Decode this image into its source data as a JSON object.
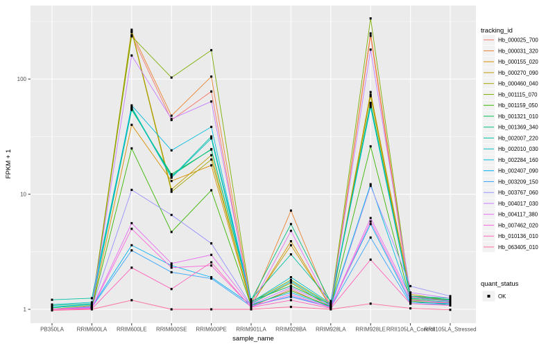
{
  "chart_data": {
    "type": "line",
    "title": "",
    "xlabel": "sample_name",
    "ylabel": "FPKM + 1",
    "y_scale": "log10",
    "y_ticks": [
      "1",
      "10",
      "100"
    ],
    "y_minor_ticks": [
      3.162,
      31.62,
      316.2
    ],
    "ylim": [
      0.93,
      450
    ],
    "grid": "on",
    "legend_position": "right",
    "legend_title": "tracking_id",
    "quant_legend_title": "quant_status",
    "quant_status_label": "OK",
    "categories": [
      "PB350LA",
      "RRIM600LA",
      "RRIM600LE",
      "RRIM600SE",
      "RRIM600PE",
      "RRIM901LA",
      "RRIM928BA",
      "RRIM928LA",
      "RRIM928LE",
      "RRII105LA_Control",
      "RRII105LA_Stressed"
    ],
    "series": [
      {
        "name": "Hb_000025_700",
        "color": "#F8766D",
        "values": [
          1.0,
          1.02,
          240,
          44.0,
          78.0,
          1.05,
          1.5,
          1.03,
          237,
          1.15,
          1.14
        ]
      },
      {
        "name": "Hb_000031_320",
        "color": "#EA8331",
        "values": [
          1.0,
          1.05,
          255,
          48.0,
          105,
          1.1,
          7.2,
          1.05,
          249,
          1.3,
          1.2
        ]
      },
      {
        "name": "Hb_000155_020",
        "color": "#D89000",
        "values": [
          1.0,
          1.04,
          40.0,
          13.0,
          17.8,
          1.08,
          3.9,
          1.04,
          73.0,
          1.25,
          1.18
        ]
      },
      {
        "name": "Hb_000270_090",
        "color": "#C09B00",
        "values": [
          1.0,
          1.06,
          268,
          11.0,
          21.8,
          1.1,
          3.6,
          1.06,
          77.0,
          1.35,
          1.2
        ]
      },
      {
        "name": "Hb_000460_040",
        "color": "#A3A500",
        "values": [
          1.0,
          1.05,
          260,
          10.5,
          20.0,
          1.12,
          1.7,
          1.05,
          71.0,
          1.22,
          1.15
        ]
      },
      {
        "name": "Hb_001115_070",
        "color": "#7CAE00",
        "values": [
          1.0,
          1.08,
          235,
          103,
          178,
          1.15,
          1.8,
          1.1,
          336,
          1.28,
          1.2
        ]
      },
      {
        "name": "Hb_001159_050",
        "color": "#39B600",
        "values": [
          1.0,
          1.03,
          25.0,
          4.7,
          10.8,
          1.08,
          1.45,
          1.06,
          26.0,
          1.18,
          1.1
        ]
      },
      {
        "name": "Hb_001321_010",
        "color": "#00BB4E",
        "values": [
          1.03,
          1.1,
          54.0,
          14.9,
          24.4,
          1.18,
          1.6,
          1.1,
          62.0,
          1.25,
          1.18
        ]
      },
      {
        "name": "Hb_001369_340",
        "color": "#00BF7D",
        "values": [
          1.08,
          1.12,
          56.0,
          14.5,
          24.6,
          1.2,
          5.5,
          1.15,
          60.0,
          1.28,
          1.22
        ]
      },
      {
        "name": "Hb_002007_220",
        "color": "#00C1A3",
        "values": [
          1.21,
          1.25,
          57.0,
          14.0,
          31.7,
          1.22,
          3.0,
          1.18,
          58.0,
          1.3,
          1.25
        ]
      },
      {
        "name": "Hb_002010_030",
        "color": "#00BFC4",
        "values": [
          1.1,
          1.15,
          55.5,
          13.9,
          30.5,
          1.15,
          1.9,
          1.12,
          57.0,
          1.24,
          1.2
        ]
      },
      {
        "name": "Hb_002284_160",
        "color": "#00BAE0",
        "values": [
          1.05,
          1.1,
          59.0,
          24.0,
          38.4,
          1.12,
          1.75,
          1.08,
          12.2,
          1.2,
          1.16
        ]
      },
      {
        "name": "Hb_002407_090",
        "color": "#00B0F6",
        "values": [
          1.0,
          1.05,
          3.6,
          2.4,
          1.9,
          1.1,
          1.4,
          1.05,
          5.5,
          1.15,
          1.12
        ]
      },
      {
        "name": "Hb_003209_150",
        "color": "#35A2FF",
        "values": [
          1.0,
          1.04,
          3.25,
          2.1,
          1.85,
          1.06,
          1.3,
          1.04,
          4.2,
          1.12,
          1.1
        ]
      },
      {
        "name": "Hb_003767_060",
        "color": "#9590FF",
        "values": [
          1.0,
          1.04,
          10.9,
          6.6,
          3.74,
          1.08,
          1.28,
          1.04,
          11.8,
          1.59,
          1.3
        ]
      },
      {
        "name": "Hb_004017_030",
        "color": "#C77CFF",
        "values": [
          1.0,
          1.06,
          160,
          45.0,
          63.8,
          1.1,
          1.55,
          1.07,
          180,
          1.4,
          1.25
        ]
      },
      {
        "name": "Hb_004117_380",
        "color": "#E76BF3",
        "values": [
          1.0,
          1.03,
          5.6,
          2.5,
          2.97,
          1.07,
          4.8,
          1.04,
          6.2,
          1.28,
          1.18
        ]
      },
      {
        "name": "Hb_007462_020",
        "color": "#FA62DB",
        "values": [
          1.0,
          1.02,
          5.0,
          2.3,
          2.4,
          1.05,
          1.35,
          1.03,
          5.8,
          1.2,
          1.14
        ]
      },
      {
        "name": "Hb_010136_010",
        "color": "#FF62BC",
        "values": [
          1.0,
          1.01,
          2.3,
          1.5,
          2.56,
          1.04,
          1.2,
          1.02,
          2.7,
          1.12,
          1.08
        ]
      },
      {
        "name": "Hb_063405_010",
        "color": "#FF6A98",
        "values": [
          0.98,
          1.0,
          1.2,
          1.0,
          1.0,
          1.0,
          1.05,
          1.0,
          1.12,
          1.02,
          0.99
        ]
      }
    ],
    "colors": {
      "panel_bg": "#EBEBEB",
      "grid": "#FFFFFF",
      "marker": "#000000",
      "tick_label": "#4D4D4D",
      "tick_mark": "#333333",
      "legend_key_bg": "#F2F2F2",
      "text": "#000000"
    }
  }
}
